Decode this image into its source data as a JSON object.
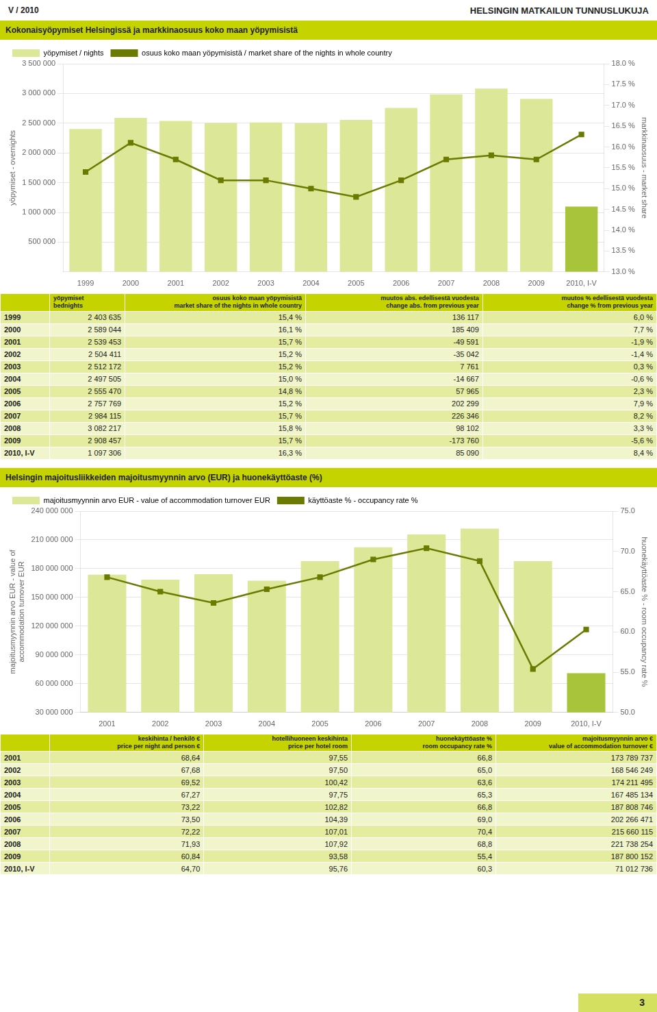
{
  "page_label": "V / 2010",
  "page_title": "HELSINGIN MATKAILUN TUNNUSLUKUJA",
  "page_number": "3",
  "chart_data": [
    {
      "type": "bar",
      "title": "Kokonaisyöpymiset Helsingissä ja markkinaosuus koko maan yöpymisistä",
      "categories": [
        "1999",
        "2000",
        "2001",
        "2002",
        "2003",
        "2004",
        "2005",
        "2006",
        "2007",
        "2008",
        "2009",
        "2010, I-V"
      ],
      "series": [
        {
          "name": "yöpymiset / nights",
          "type": "bar",
          "color": "#dce897",
          "colors": [
            "#dce897",
            "#dce897",
            "#dce897",
            "#dce897",
            "#dce897",
            "#dce897",
            "#dce897",
            "#dce897",
            "#dce897",
            "#dce897",
            "#dce897",
            "#a8c43a"
          ],
          "values": [
            2403635,
            2589044,
            2539453,
            2504411,
            2512172,
            2497505,
            2555470,
            2757769,
            2984115,
            3082217,
            2908457,
            1097306
          ]
        },
        {
          "name": "osuus koko maan yöpymisistä / market share of the nights in whole country",
          "type": "line",
          "axis": "y2",
          "color": "#6b7a00",
          "marker": "square",
          "line_style": "solid",
          "values": [
            15.4,
            16.1,
            15.7,
            15.2,
            15.2,
            15.0,
            14.8,
            15.2,
            15.7,
            15.8,
            15.7,
            16.3
          ]
        }
      ],
      "ylabel": "yöpymiset - overnights",
      "y2label": "markkinaosuus - market share",
      "ylim": [
        0,
        3500000
      ],
      "yticks": [
        {
          "value": 500000,
          "label": "500 000"
        },
        {
          "value": 1000000,
          "label": "1 000 000"
        },
        {
          "value": 1500000,
          "label": "1 500 000"
        },
        {
          "value": 2000000,
          "label": "2 000 000"
        },
        {
          "value": 2500000,
          "label": "2 500 000"
        },
        {
          "value": 3000000,
          "label": "3 000 000"
        },
        {
          "value": 3500000,
          "label": "3 500 000"
        }
      ],
      "y2lim": [
        13.0,
        18.0
      ],
      "y2ticks": [
        {
          "value": 13.0,
          "label": "13.0 %"
        },
        {
          "value": 13.5,
          "label": "13.5 %"
        },
        {
          "value": 14.0,
          "label": "14.0 %"
        },
        {
          "value": 14.5,
          "label": "14.5 %"
        },
        {
          "value": 15.0,
          "label": "15.0 %"
        },
        {
          "value": 15.5,
          "label": "15.5 %"
        },
        {
          "value": 16.0,
          "label": "16.0 %"
        },
        {
          "value": 16.5,
          "label": "16.5 %"
        },
        {
          "value": 17.0,
          "label": "17.0 %"
        },
        {
          "value": 17.5,
          "label": "17.5 %"
        },
        {
          "value": 18.0,
          "label": "18.0 %"
        }
      ],
      "grid": true,
      "legend": "upper left"
    },
    {
      "type": "bar",
      "title": "Helsingin majoitusliikkeiden majoitusmyynnin arvo (EUR) ja huonekäyttöaste (%)",
      "categories": [
        "2001",
        "2002",
        "2003",
        "2004",
        "2005",
        "2006",
        "2007",
        "2008",
        "2009",
        "2010, I-V"
      ],
      "series": [
        {
          "name": "majoitusmyynnin arvo EUR - value of accommodation turnover EUR",
          "type": "bar",
          "color": "#dce897",
          "colors": [
            "#dce897",
            "#dce897",
            "#dce897",
            "#dce897",
            "#dce897",
            "#dce897",
            "#dce897",
            "#dce897",
            "#dce897",
            "#a8c43a"
          ],
          "values": [
            173789737,
            168546249,
            174211495,
            167485134,
            187808746,
            202266471,
            215660115,
            221738254,
            187800152,
            71012736
          ]
        },
        {
          "name": "käyttöaste % - occupancy rate %",
          "type": "line",
          "axis": "y2",
          "color": "#6b7a00",
          "marker": "square",
          "line_style": "solid",
          "values": [
            66.8,
            65.0,
            63.6,
            65.3,
            66.8,
            69.0,
            70.4,
            68.8,
            55.4,
            60.3
          ]
        }
      ],
      "ylabel": "majoitusmyynnin arvo EUR - value of\naccommodation turnover EUR",
      "y2label": "huonekäyttöaste % - room occupancy rate %",
      "ylim": [
        30000000,
        240000000
      ],
      "yticks": [
        {
          "value": 30000000,
          "label": "30 000 000"
        },
        {
          "value": 60000000,
          "label": "60 000 000"
        },
        {
          "value": 90000000,
          "label": "90 000 000"
        },
        {
          "value": 120000000,
          "label": "120 000 000"
        },
        {
          "value": 150000000,
          "label": "150 000 000"
        },
        {
          "value": 180000000,
          "label": "180 000 000"
        },
        {
          "value": 210000000,
          "label": "210 000 000"
        },
        {
          "value": 240000000,
          "label": "240 000 000"
        }
      ],
      "y2lim": [
        50.0,
        75.0
      ],
      "y2ticks": [
        {
          "value": 50.0,
          "label": "50.0"
        },
        {
          "value": 55.0,
          "label": "55.0"
        },
        {
          "value": 60.0,
          "label": "60.0"
        },
        {
          "value": 65.0,
          "label": "65.0"
        },
        {
          "value": 70.0,
          "label": "70.0"
        },
        {
          "value": 75.0,
          "label": "75.0"
        }
      ],
      "grid": true,
      "legend": "upper left"
    }
  ],
  "tables": [
    {
      "widths": [
        7.5,
        11.5,
        27.5,
        27,
        26.5
      ],
      "headers": [
        [],
        [
          "yöpymiset",
          "bednights"
        ],
        [
          "osuus koko maan yöpymisistä",
          "market share of the nights in whole country"
        ],
        [
          "muutos abs. edellisestä vuodesta",
          "change abs. from previous year"
        ],
        [
          "muutos % edellisestä vuodesta",
          "change % from previous year"
        ]
      ],
      "rows": [
        [
          "1999",
          "2 403 635",
          "15,4 %",
          "136 117",
          "6,0 %"
        ],
        [
          "2000",
          "2 589 044",
          "16,1 %",
          "185 409",
          "7,7 %"
        ],
        [
          "2001",
          "2 539 453",
          "15,7 %",
          "-49 591",
          "-1,9 %"
        ],
        [
          "2002",
          "2 504 411",
          "15,2 %",
          "-35 042",
          "-1,4 %"
        ],
        [
          "2003",
          "2 512 172",
          "15,2 %",
          "7 761",
          "0,3 %"
        ],
        [
          "2004",
          "2 497 505",
          "15,0 %",
          "-14 667",
          "-0,6 %"
        ],
        [
          "2005",
          "2 555 470",
          "14,8 %",
          "57 965",
          "2,3 %"
        ],
        [
          "2006",
          "2 757 769",
          "15,2 %",
          "202 299",
          "7,9 %"
        ],
        [
          "2007",
          "2 984 115",
          "15,7 %",
          "226 346",
          "8,2 %"
        ],
        [
          "2008",
          "3 082 217",
          "15,8 %",
          "98 102",
          "3,3 %"
        ],
        [
          "2009",
          "2 908 457",
          "15,7 %",
          "-173 760",
          "-5,6 %"
        ],
        [
          "2010, I-V",
          "1 097 306",
          "16,3 %",
          "85 090",
          "8,4 %"
        ]
      ]
    },
    {
      "widths": [
        7.5,
        23.5,
        22.5,
        22,
        24.5
      ],
      "headers": [
        [],
        [
          "keskihinta / henkilö €",
          "price per night and person €"
        ],
        [
          "hotellihuoneen keskihinta",
          "price per hotel room"
        ],
        [
          "huonekäyttöaste %",
          "room occupancy rate %"
        ],
        [
          "majoitusmyynnin arvo €",
          "value of accommodation turnover €"
        ]
      ],
      "rows": [
        [
          "2001",
          "68,64",
          "97,55",
          "66,8",
          "173 789 737"
        ],
        [
          "2002",
          "67,68",
          "97,50",
          "65,0",
          "168 546 249"
        ],
        [
          "2003",
          "69,52",
          "100,42",
          "63,6",
          "174 211 495"
        ],
        [
          "2004",
          "67,27",
          "97,75",
          "65,3",
          "167 485 134"
        ],
        [
          "2005",
          "73,22",
          "102,82",
          "66,8",
          "187 808 746"
        ],
        [
          "2006",
          "73,50",
          "104,39",
          "69,0",
          "202 266 471"
        ],
        [
          "2007",
          "72,22",
          "107,01",
          "70,4",
          "215 660 115"
        ],
        [
          "2008",
          "71,93",
          "107,92",
          "68,8",
          "221 738 254"
        ],
        [
          "2009",
          "60,84",
          "93,58",
          "55,4",
          "187 800 152"
        ],
        [
          "2010, I-V",
          "64,70",
          "95,76",
          "60,3",
          "71 012 736"
        ]
      ]
    }
  ]
}
